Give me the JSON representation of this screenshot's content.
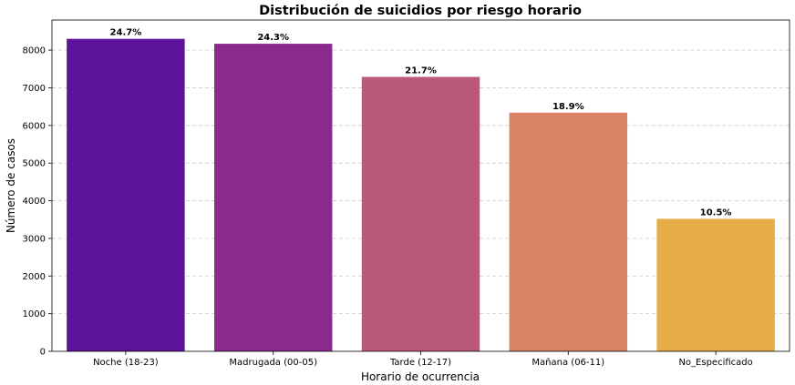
{
  "chart_data": {
    "type": "bar",
    "title": "Distribución de suicidios por riesgo horario",
    "xlabel": "Horario de ocurrencia",
    "ylabel": "Número de casos",
    "categories": [
      "Noche (18-23)",
      "Madrugada (00-05)",
      "Tarde (12-17)",
      "Mañana (06-11)",
      "No_Especificado"
    ],
    "values": [
      8300,
      8170,
      7290,
      6340,
      3520
    ],
    "labels": [
      "24.7%",
      "24.3%",
      "21.7%",
      "18.9%",
      "10.5%"
    ],
    "colors": [
      "#5c139a",
      "#8a2a8c",
      "#bb5978",
      "#d98366",
      "#e5ac47"
    ],
    "ylim": [
      0,
      8800
    ],
    "yticks": [
      0,
      1000,
      2000,
      3000,
      4000,
      5000,
      6000,
      7000,
      8000
    ],
    "grid": "y-dashed"
  }
}
